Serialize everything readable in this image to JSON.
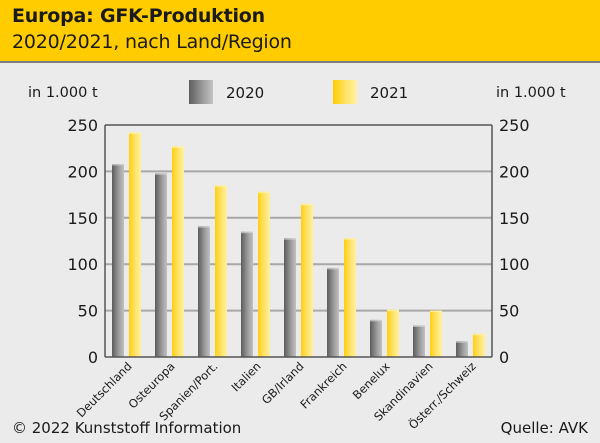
{
  "header": {
    "title": "Europa: GFK-Produktion",
    "subtitle": "2020/2021, nach Land/Region"
  },
  "units": {
    "left": "in 1.000 t",
    "right": "in 1.000 t"
  },
  "footer": {
    "copyright": "© 2022 Kunststoff Information",
    "source": "Quelle: AVK"
  },
  "colors": {
    "header_bg": "#ffcc00",
    "series_2020": "#8a8a8a",
    "series_2021": "#ffd92e",
    "background": "#ebebeb"
  },
  "chart_data": {
    "type": "bar",
    "title": "Europa: GFK-Produktion",
    "subtitle": "2020/2021, nach Land/Region",
    "xlabel": "",
    "ylabel": "in 1.000 t",
    "ylabel_right": "in 1.000 t",
    "ylim": [
      0,
      250
    ],
    "yticks": [
      0,
      50,
      100,
      150,
      200,
      250
    ],
    "grid": true,
    "legend_position": "top",
    "categories": [
      "Deutschland",
      "Osteuropa",
      "Spanien/Port.",
      "Italien",
      "GB/Irland",
      "Frankreich",
      "Benelux",
      "Skandinavien",
      "Österr./Schweiz"
    ],
    "series": [
      {
        "name": "2020",
        "values": [
          208,
          198,
          141,
          135,
          128,
          96,
          40,
          34,
          17
        ]
      },
      {
        "name": "2021",
        "values": [
          242,
          227,
          185,
          178,
          165,
          128,
          51,
          50,
          25
        ]
      }
    ]
  }
}
